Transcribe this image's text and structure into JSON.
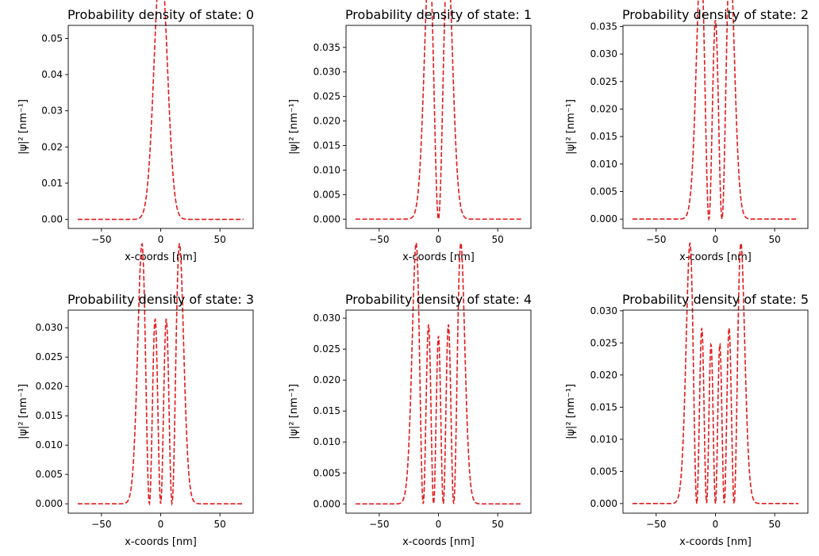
{
  "chart_data": [
    {
      "type": "line",
      "title": "Probability density of state: 0",
      "xlabel": "x-coords [nm]",
      "ylabel": "|ψ|² [nm⁻¹]",
      "state": 0,
      "sigma_nm": 7.8,
      "x_range": [
        -70,
        70
      ],
      "xlim": [
        -78,
        78
      ],
      "ylim": [
        -0.0025,
        0.0536
      ],
      "xticks": [
        -50,
        0,
        50
      ],
      "yticks": [
        0.0,
        0.01,
        0.02,
        0.03,
        0.04,
        0.05
      ],
      "ytick_labels": [
        "0.00",
        "0.01",
        "0.02",
        "0.03",
        "0.04",
        "0.05"
      ],
      "line_color": "#e31a1c",
      "line_style": "dashed",
      "grid": false
    },
    {
      "type": "line",
      "title": "Probability density of state: 1",
      "xlabel": "x-coords [nm]",
      "ylabel": "|ψ|² [nm⁻¹]",
      "state": 1,
      "sigma_nm": 7.8,
      "x_range": [
        -70,
        70
      ],
      "xlim": [
        -78,
        78
      ],
      "ylim": [
        -0.0019,
        0.0395
      ],
      "xticks": [
        -50,
        0,
        50
      ],
      "yticks": [
        0.0,
        0.005,
        0.01,
        0.015,
        0.02,
        0.025,
        0.03,
        0.035
      ],
      "ytick_labels": [
        "0.000",
        "0.005",
        "0.010",
        "0.015",
        "0.020",
        "0.025",
        "0.030",
        "0.035"
      ],
      "line_color": "#e31a1c",
      "line_style": "dashed",
      "grid": false
    },
    {
      "type": "line",
      "title": "Probability density of state: 2",
      "xlabel": "x-coords [nm]",
      "ylabel": "|ψ|² [nm⁻¹]",
      "state": 2,
      "sigma_nm": 7.8,
      "x_range": [
        -70,
        70
      ],
      "xlim": [
        -78,
        78
      ],
      "ylim": [
        -0.0017,
        0.0352
      ],
      "xticks": [
        -50,
        0,
        50
      ],
      "yticks": [
        0.0,
        0.005,
        0.01,
        0.015,
        0.02,
        0.025,
        0.03,
        0.035
      ],
      "ytick_labels": [
        "0.000",
        "0.005",
        "0.010",
        "0.015",
        "0.020",
        "0.025",
        "0.030",
        "0.035"
      ],
      "line_color": "#e31a1c",
      "line_style": "dashed",
      "grid": false
    },
    {
      "type": "line",
      "title": "Probability density of state: 3",
      "xlabel": "x-coords [nm]",
      "ylabel": "|ψ|² [nm⁻¹]",
      "state": 3,
      "sigma_nm": 7.8,
      "x_range": [
        -70,
        70
      ],
      "xlim": [
        -78,
        78
      ],
      "ylim": [
        -0.0016,
        0.033
      ],
      "xticks": [
        -50,
        0,
        50
      ],
      "yticks": [
        0.0,
        0.005,
        0.01,
        0.015,
        0.02,
        0.025,
        0.03
      ],
      "ytick_labels": [
        "0.000",
        "0.005",
        "0.010",
        "0.015",
        "0.020",
        "0.025",
        "0.030"
      ],
      "line_color": "#e31a1c",
      "line_style": "dashed",
      "grid": false
    },
    {
      "type": "line",
      "title": "Probability density of state: 4",
      "xlabel": "x-coords [nm]",
      "ylabel": "|ψ|² [nm⁻¹]",
      "state": 4,
      "sigma_nm": 7.8,
      "x_range": [
        -70,
        70
      ],
      "xlim": [
        -78,
        78
      ],
      "ylim": [
        -0.0015,
        0.0313
      ],
      "xticks": [
        -50,
        0,
        50
      ],
      "yticks": [
        0.0,
        0.005,
        0.01,
        0.015,
        0.02,
        0.025,
        0.03
      ],
      "ytick_labels": [
        "0.000",
        "0.005",
        "0.010",
        "0.015",
        "0.020",
        "0.025",
        "0.030"
      ],
      "line_color": "#e31a1c",
      "line_style": "dashed",
      "grid": false
    },
    {
      "type": "line",
      "title": "Probability density of state: 5",
      "xlabel": "x-coords [nm]",
      "ylabel": "|ψ|² [nm⁻¹]",
      "state": 5,
      "sigma_nm": 7.8,
      "x_range": [
        -70,
        70
      ],
      "xlim": [
        -78,
        78
      ],
      "ylim": [
        -0.0015,
        0.0301
      ],
      "xticks": [
        -50,
        0,
        50
      ],
      "yticks": [
        0.0,
        0.005,
        0.01,
        0.015,
        0.02,
        0.025,
        0.03
      ],
      "ytick_labels": [
        "0.000",
        "0.005",
        "0.010",
        "0.015",
        "0.020",
        "0.025",
        "0.030"
      ],
      "line_color": "#e31a1c",
      "line_style": "dashed",
      "grid": false
    }
  ]
}
